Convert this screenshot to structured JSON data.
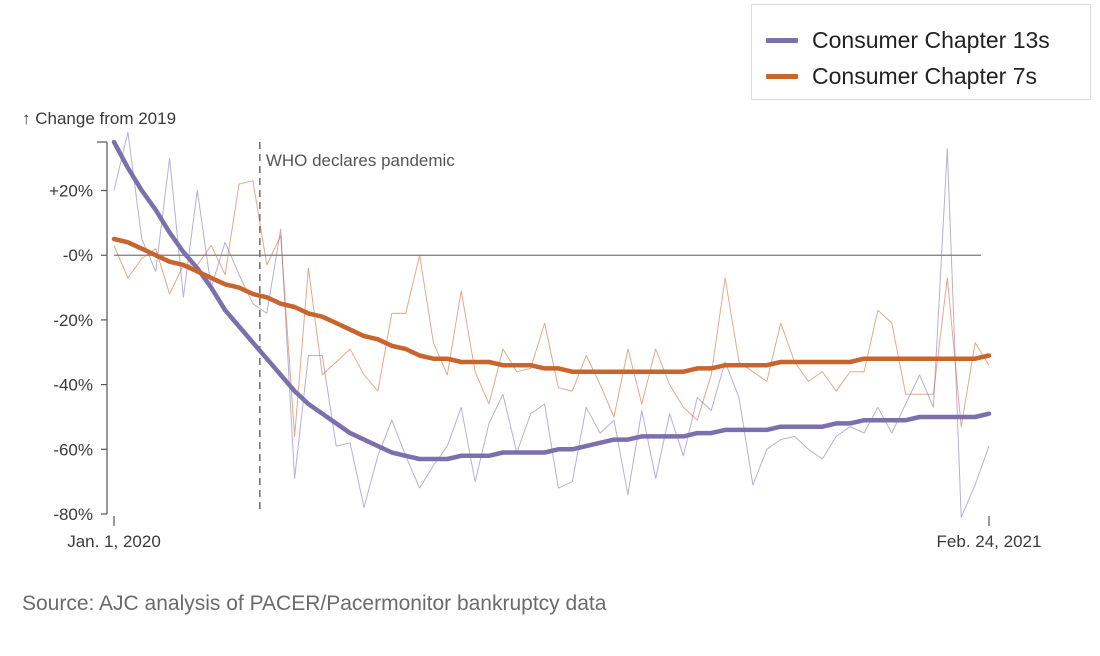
{
  "chart_data": {
    "type": "line",
    "ylabel": "↑ Change from 2019",
    "ylim": [
      -80,
      35
    ],
    "yticks": [
      {
        "value": 20,
        "label": "+20%"
      },
      {
        "value": 0,
        "label": "-0%"
      },
      {
        "value": -20,
        "label": "-20%"
      },
      {
        "value": -40,
        "label": "-40%"
      },
      {
        "value": -60,
        "label": "-60%"
      },
      {
        "value": -80,
        "label": "-80%"
      }
    ],
    "xrange": [
      "2020-01-01",
      "2021-02-24"
    ],
    "xticks": [
      {
        "date": "2020-01-01",
        "label": "Jan. 1, 2020"
      },
      {
        "date": "2021-02-24",
        "label": "Feb. 24, 2021"
      }
    ],
    "annotation": {
      "date": "2020-03-11",
      "label": "WHO declares pandemic"
    },
    "legend_position": "top-right",
    "source": "Source: AJC analysis of PACER/Pacermonitor bankruptcy data",
    "series": [
      {
        "name": "Consumer Chapter 13s",
        "color": "#7b6fae",
        "smoothed": [
          35,
          27,
          20,
          14,
          7,
          1,
          -4,
          -10,
          -17,
          -22,
          -27,
          -32,
          -37,
          -42,
          -46,
          -49,
          -52,
          -55,
          -57,
          -59,
          -61,
          -62,
          -63,
          -63,
          -63,
          -62,
          -62,
          -62,
          -61,
          -61,
          -61,
          -61,
          -60,
          -60,
          -59,
          -58,
          -57,
          -57,
          -56,
          -56,
          -56,
          -56,
          -55,
          -55,
          -54,
          -54,
          -54,
          -54,
          -53,
          -53,
          -53,
          -53,
          -52,
          -52,
          -51,
          -51,
          -51,
          -51,
          -50,
          -50,
          -50,
          -50,
          -50,
          -49
        ],
        "weekly": [
          20,
          38,
          5,
          -5,
          30,
          -13,
          20,
          -10,
          4,
          -6,
          -15,
          -18,
          8,
          -69,
          -31,
          -31,
          -59,
          -58,
          -78,
          -62,
          -51,
          -62,
          -72,
          -65,
          -59,
          -47,
          -70,
          -52,
          -43,
          -61,
          -49,
          -46,
          -72,
          -70,
          -47,
          -55,
          -51,
          -74,
          -48,
          -69,
          -49,
          -62,
          -44,
          -48,
          -33,
          -44,
          -71,
          -60,
          -57,
          -56,
          -60,
          -63,
          -56,
          -53,
          -55,
          -47,
          -55,
          -46,
          -37,
          -47,
          33,
          -81,
          -71,
          -59
        ]
      },
      {
        "name": "Consumer Chapter 7s",
        "color": "#c8642d",
        "smoothed": [
          5,
          4,
          2,
          0,
          -2,
          -3,
          -5,
          -7,
          -9,
          -10,
          -12,
          -13,
          -15,
          -16,
          -18,
          -19,
          -21,
          -23,
          -25,
          -26,
          -28,
          -29,
          -31,
          -32,
          -32,
          -33,
          -33,
          -33,
          -34,
          -34,
          -34,
          -35,
          -35,
          -36,
          -36,
          -36,
          -36,
          -36,
          -36,
          -36,
          -36,
          -36,
          -35,
          -35,
          -34,
          -34,
          -34,
          -34,
          -33,
          -33,
          -33,
          -33,
          -33,
          -33,
          -32,
          -32,
          -32,
          -32,
          -32,
          -32,
          -32,
          -32,
          -32,
          -31
        ],
        "weekly": [
          3,
          -7,
          -1,
          2,
          -12,
          -3,
          -3,
          3,
          -6,
          22,
          23,
          -3,
          6,
          -56,
          -4,
          -37,
          -33,
          -29,
          -37,
          -42,
          -18,
          -18,
          0,
          -27,
          -37,
          -11,
          -36,
          -46,
          -29,
          -36,
          -35,
          -21,
          -41,
          -42,
          -31,
          -40,
          -50,
          -29,
          -46,
          -29,
          -40,
          -47,
          -51,
          -37,
          -7,
          -33,
          -36,
          -39,
          -21,
          -33,
          -39,
          -36,
          -42,
          -36,
          -36,
          -17,
          -21,
          -43,
          -43,
          -43,
          -7,
          -53,
          -27,
          -34
        ]
      }
    ]
  }
}
